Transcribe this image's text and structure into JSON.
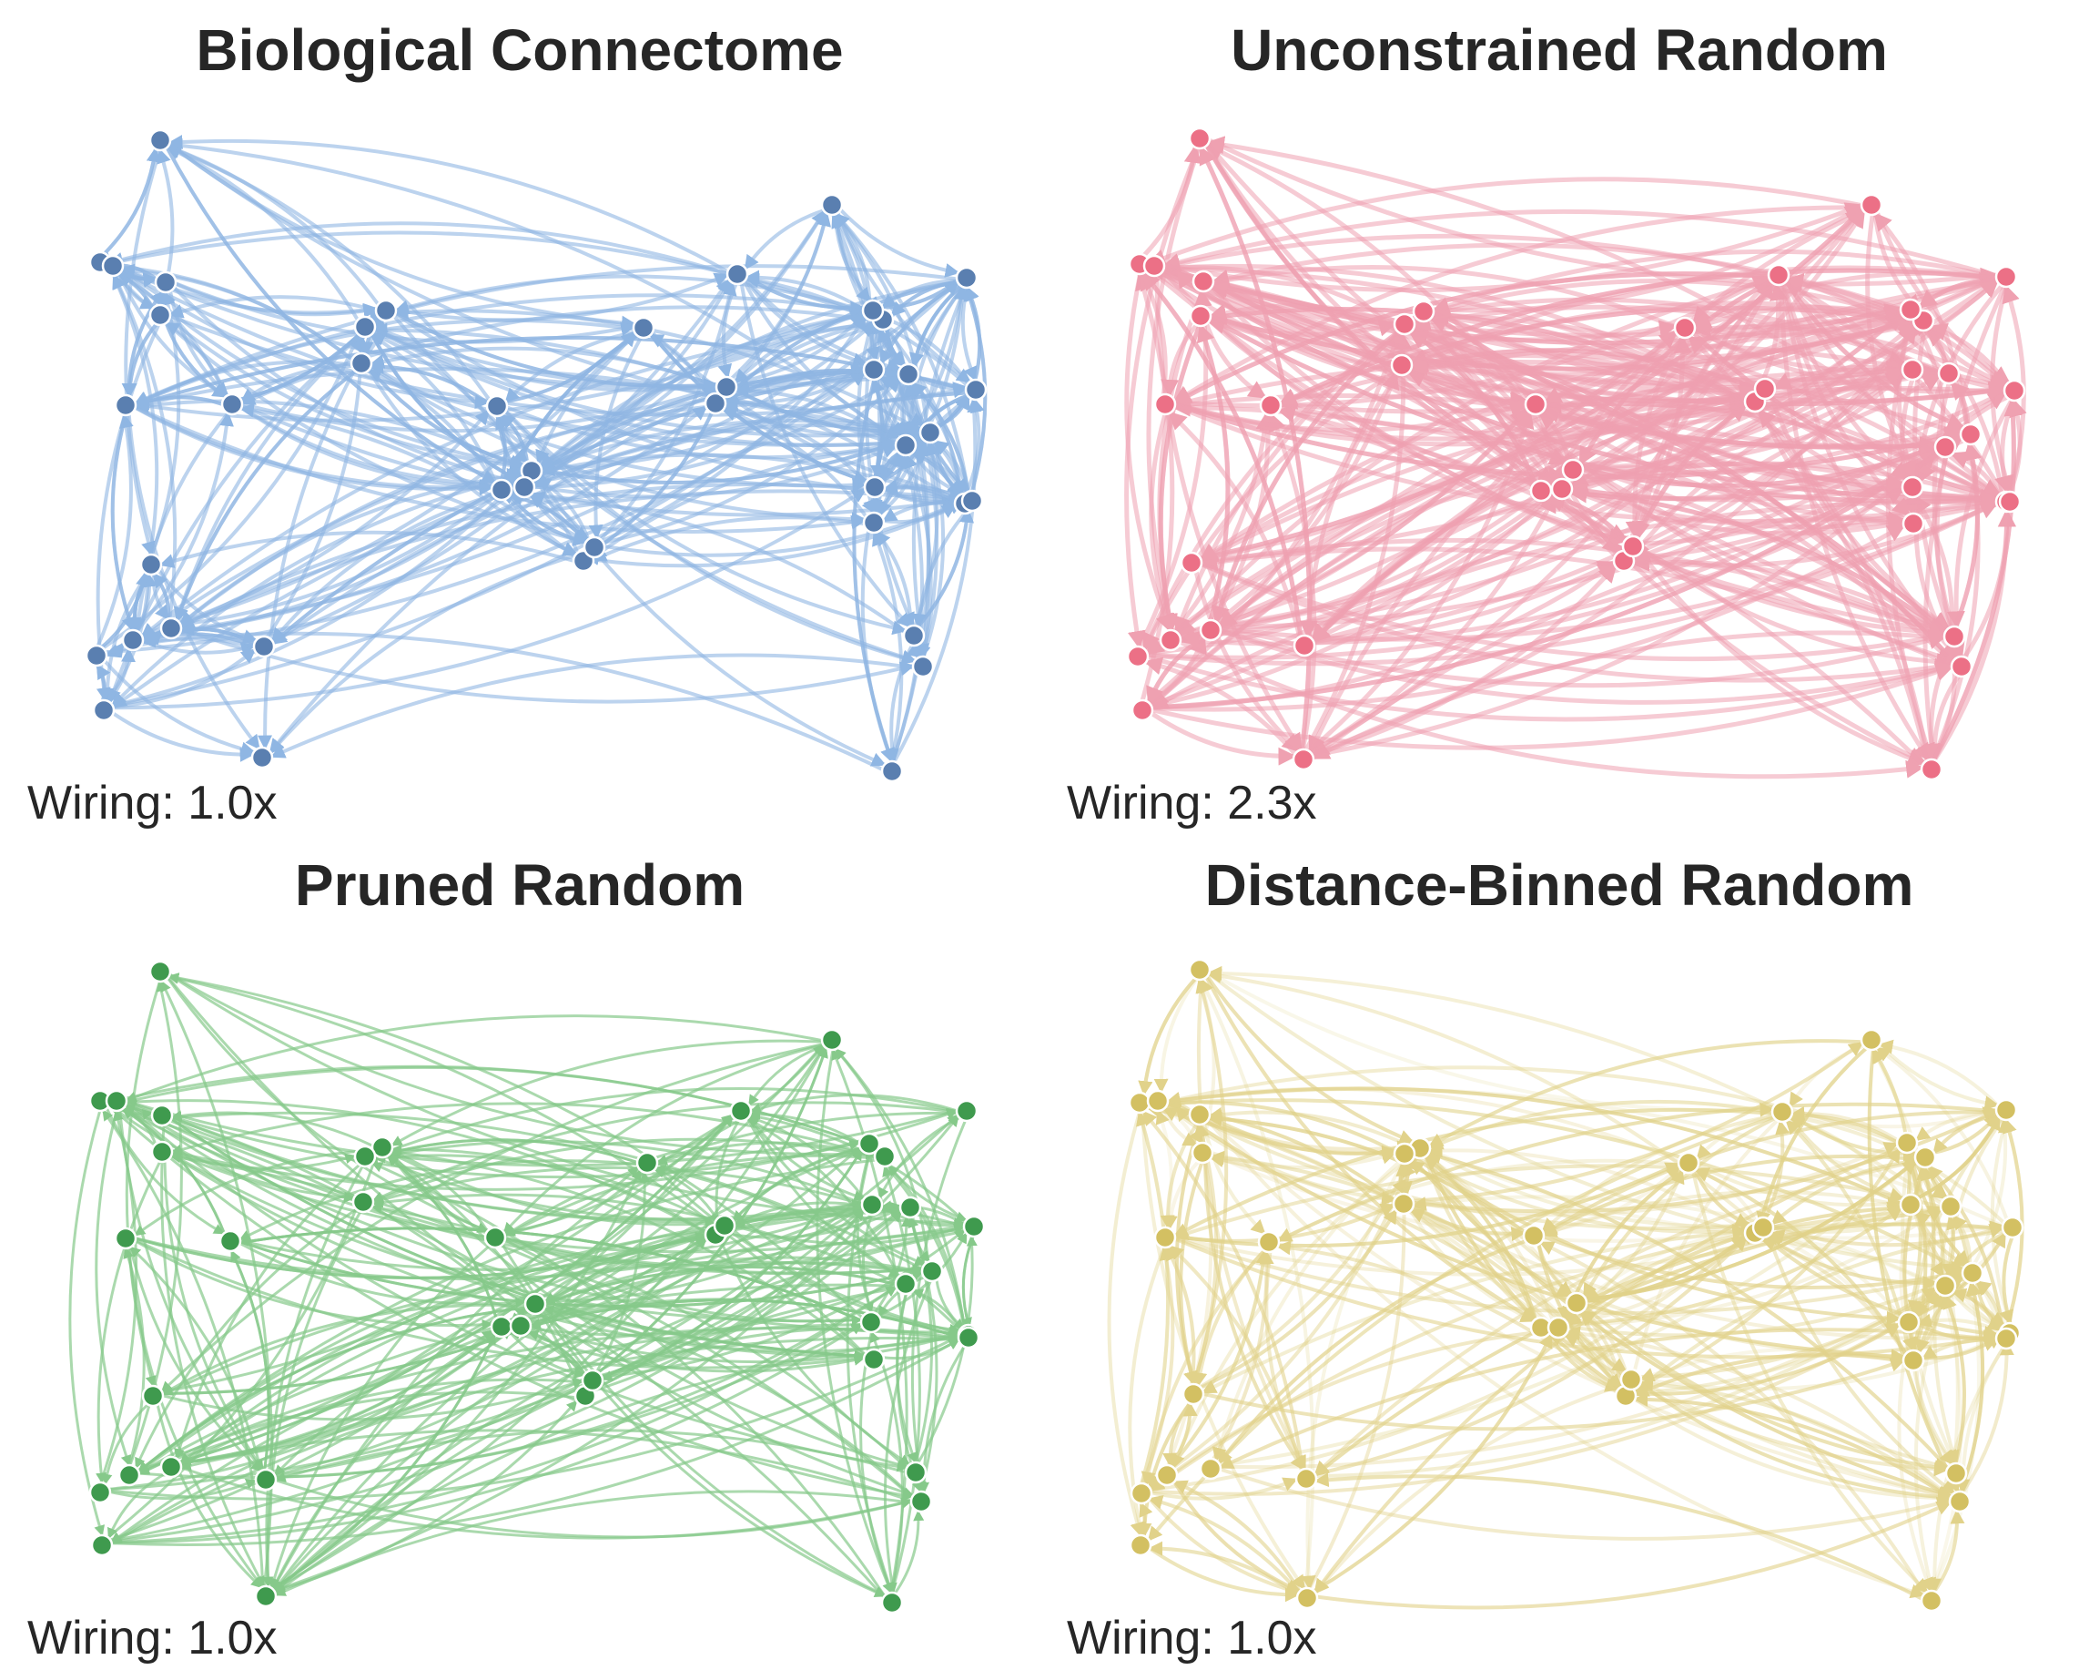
{
  "panels": [
    {
      "title": "Biological Connectome",
      "wiring": "Wiring: 1.0x",
      "edge_color": "#8fb6e3",
      "node_color": "#5a7fb0"
    },
    {
      "title": "Unconstrained Random",
      "wiring": "Wiring: 2.3x",
      "edge_color": "#efa1b1",
      "node_color": "#ec7086"
    },
    {
      "title": "Pruned Random",
      "wiring": "Wiring: 1.0x",
      "edge_color": "#86c98a",
      "node_color": "#3f9a4e"
    },
    {
      "title": "Distance-Binned Random",
      "wiring": "Wiring: 1.0x",
      "edge_color": "#e1d28a",
      "node_color": "#d3c062"
    }
  ]
}
